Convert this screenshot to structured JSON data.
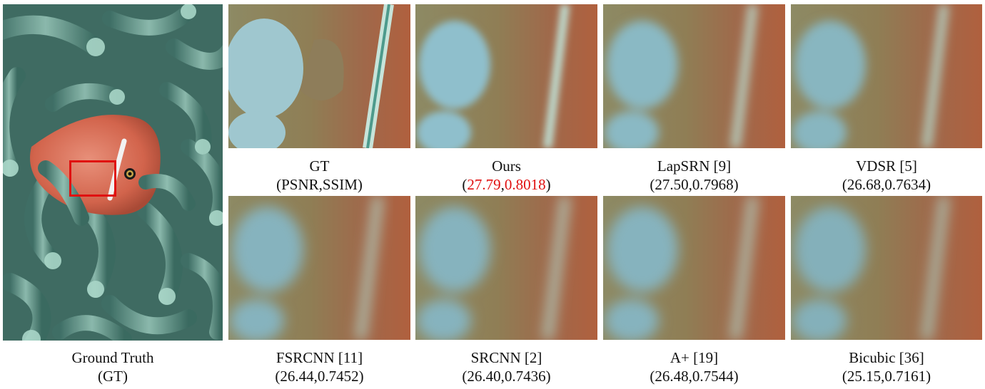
{
  "figure": {
    "main": {
      "label": "Ground Truth",
      "sublabel": "(GT)"
    },
    "panels": [
      {
        "id": "gt",
        "method": "GT",
        "metric": "(PSNR,SSIM)"
      },
      {
        "id": "ours",
        "method": "Ours",
        "psnr": "27.79",
        "ssim": "0.8018",
        "best": true
      },
      {
        "id": "lapsrn",
        "method": "LapSRN [9]",
        "metric": "(27.50,0.7968)"
      },
      {
        "id": "vdsr",
        "method": "VDSR [5]",
        "metric": "(26.68,0.7634)"
      },
      {
        "id": "fsrcnn",
        "method": "FSRCNN [11]",
        "metric": "(26.44,0.7452)"
      },
      {
        "id": "srcnn",
        "method": "SRCNN [2]",
        "metric": "(26.40,0.7436)"
      },
      {
        "id": "aplus",
        "method": "A+ [19]",
        "metric": "(26.48,0.7544)"
      },
      {
        "id": "bicubic",
        "method": "Bicubic [36]",
        "metric": "(25.15,0.7161)"
      }
    ],
    "ours_open": "(",
    "ours_sep": ",",
    "ours_close": ")",
    "colors": {
      "highlight": "#e01010",
      "roi_box": "#e01010"
    }
  }
}
